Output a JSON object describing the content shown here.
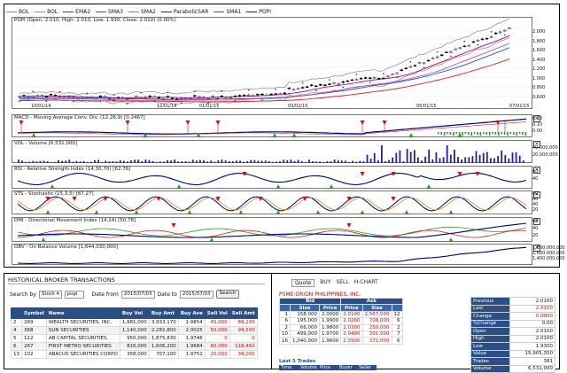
{
  "legend": [
    {
      "label": "BOL",
      "color": "#888888"
    },
    {
      "label": "BOL",
      "color": "#888888"
    },
    {
      "label": "EMA2",
      "color": "#c0007a"
    },
    {
      "label": "SMA3",
      "color": "#1e56d6"
    },
    {
      "label": "SMA2",
      "color": "#c050c0"
    },
    {
      "label": "ParabolicSAR",
      "color": "#1a1aa0"
    },
    {
      "label": "SMA1",
      "color": "#e02020"
    },
    {
      "label": "POPI",
      "color": "#222222"
    }
  ],
  "panels": {
    "price": {
      "title": "POPI (Open: 2.010, High: 2.010, Low: 1.930, Close: 2.010) (0.00%)",
      "ticks": [
        "2.000",
        "1.800",
        "1.600",
        "1.400",
        "1.200",
        "1.000",
        "0.800",
        "0.600"
      ],
      "dates": [
        "10/01/14",
        "12/01/14",
        "01/01/15",
        "03/02/15",
        "05/01/15",
        "07/01/15"
      ]
    },
    "macd": {
      "title": "MACD - Moving Average Conv. Div. (12,26,9) [0.2467]",
      "ticks": [
        "0.20",
        "0.10",
        "0.00"
      ]
    },
    "vol": {
      "title": "VOL - Volume [6,531,000]",
      "ticks": [
        "40,000,000",
        "20,000,000"
      ]
    },
    "rsi": {
      "title": "RSI - Relative Strength Index (14,30,70) [62.76]",
      "ticks": [
        "60",
        "40"
      ]
    },
    "sts": {
      "title": "STS - Stochastic (15,3,5) [87.27]",
      "ticks": [
        "80",
        "60",
        "40",
        "20"
      ]
    },
    "dmi": {
      "title": "DMI - Directional Movement Index (14,14) [50.78]",
      "ticks": [
        "60",
        "40",
        "20"
      ]
    },
    "obv": {
      "title": "OBV - On Balance Volume [1,644,030,000]",
      "ticks": [
        "1,800,000,000",
        "1,600,000,000",
        "1,400,000,000"
      ]
    }
  },
  "colors": {
    "header_blue": "#2b4f84",
    "sell_red": "#dd0000"
  },
  "history": {
    "title": "HISTORICAL BROKER TRANSACTIONS",
    "search_by_label": "Search by",
    "search_by_value": "Stock",
    "stock_value": "popi",
    "date_from_label": "Date from",
    "date_from": "2015/07/03",
    "date_to_label": "Date to",
    "date_to": "2015/07/03",
    "search_button": "Search",
    "columns": [
      "",
      "Symbol",
      "Name",
      "Buy Vol",
      "Buy Amt",
      "Buy Ave",
      "Sell Vol",
      "Sell Amt"
    ],
    "rows": [
      [
        "2",
        "269",
        "WEALTH SECURITIES, INC.",
        "1,981,000",
        "3,933,170",
        "1.9854",
        "45,000",
        "89,100"
      ],
      [
        "4",
        "368",
        "SUN SECURITIES",
        "1,140,000",
        "2,282,800",
        "2.0025",
        "50,000",
        "99,500"
      ],
      [
        "5",
        "112",
        "AB CAPITAL SECURITIES,",
        "950,000",
        "1,875,830",
        "1.9746",
        "0",
        "0"
      ],
      [
        "6",
        "267",
        "FIRST METRO SECURITIES",
        "816,000",
        "1,606,200",
        "1.9684",
        "60,000",
        "118,460"
      ],
      [
        "13",
        "102",
        "ABACUS SECURITIES CORPO",
        "358,000",
        "707,100",
        "1.9751",
        "20,000",
        "39,000"
      ]
    ]
  },
  "quote": {
    "tabs": [
      "Quote",
      "BUY",
      "SELL",
      "H-CHART"
    ],
    "title": "PSME:ORION PHILIPPINES, INC.",
    "bid_label": "Bid",
    "ask_label": "Ask",
    "cols": [
      "",
      "Size",
      "Price",
      "Price",
      "Size",
      ""
    ],
    "rows": [
      [
        "1",
        "158,000",
        "2.0000",
        "2.0100",
        "2,567,000",
        "12"
      ],
      [
        "6",
        "195,000",
        "1.9900",
        "2.0200",
        "708,000",
        "6"
      ],
      [
        "2",
        "66,000",
        "1.9800",
        "2.0300",
        "250,000",
        "2"
      ],
      [
        "10",
        "499,000",
        "1.9700",
        "2.0400",
        "391,000",
        "7"
      ],
      [
        "16",
        "1,040,000",
        "1.9600",
        "2.0500",
        "372,000",
        "6"
      ]
    ],
    "last5": "Last 5 Trades",
    "trade_cols": [
      "Time",
      "Volume",
      "Price",
      "Buyer",
      "Seller"
    ],
    "summary": [
      [
        "Previous",
        "2.0100"
      ],
      [
        "Last",
        "2.0100"
      ],
      [
        "Change",
        "0.0000"
      ],
      [
        "%Change",
        "0.00"
      ],
      [
        "Open",
        "2.0100"
      ],
      [
        "High",
        "2.0100"
      ],
      [
        "Low",
        "1.9300"
      ],
      [
        "Value",
        "15,905,350"
      ],
      [
        "Trades",
        "381"
      ],
      [
        "Volume",
        "6,531,000"
      ]
    ]
  }
}
